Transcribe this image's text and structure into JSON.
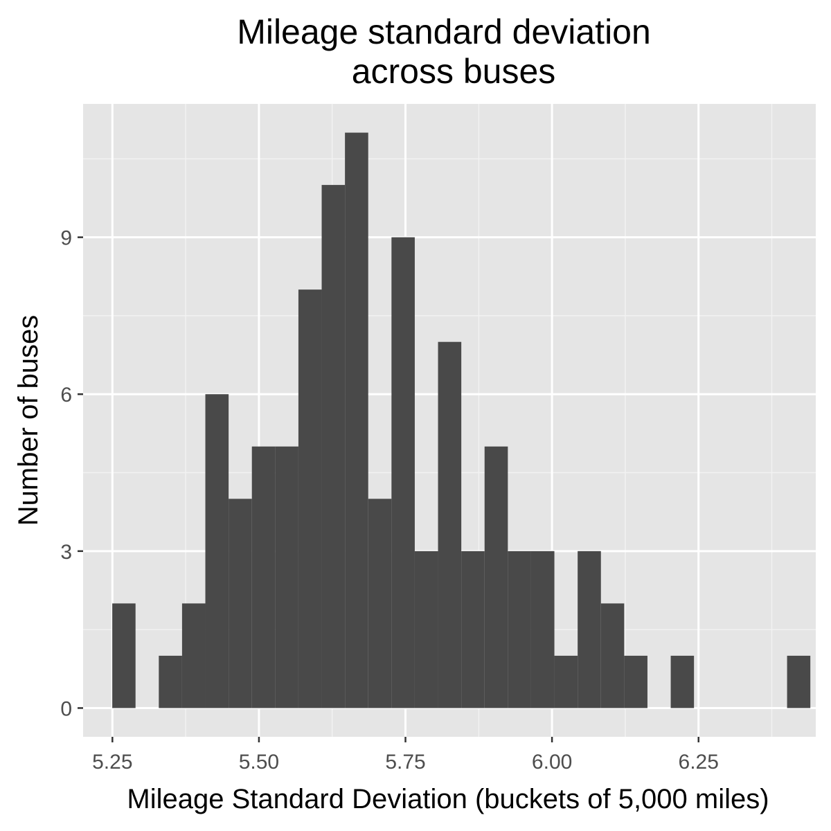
{
  "chart_data": {
    "type": "bar",
    "title_lines": [
      "Mileage standard deviation",
      "across buses"
    ],
    "xlabel": "Mileage Standard Deviation (buckets of 5,000 miles)",
    "ylabel": "Number of buses",
    "xlim": [
      5.2,
      6.45
    ],
    "ylim": [
      -0.55,
      11.55
    ],
    "x_ticks": [
      5.25,
      5.5,
      5.75,
      6.0,
      6.25
    ],
    "x_tick_labels": [
      "5.25",
      "5.50",
      "5.75",
      "6.00",
      "6.25"
    ],
    "x_minor_ticks": [
      5.375,
      5.625,
      5.875,
      6.125,
      6.375
    ],
    "y_ticks": [
      0,
      3,
      6,
      9
    ],
    "y_tick_labels": [
      "0",
      "3",
      "6",
      "9"
    ],
    "y_minor_ticks": [
      1.5,
      4.5,
      7.5,
      10.5
    ],
    "bin_width": 0.0397,
    "bins": [
      {
        "x": 5.2696,
        "count": 2
      },
      {
        "x": 5.3093,
        "count": 0
      },
      {
        "x": 5.349,
        "count": 1
      },
      {
        "x": 5.3887,
        "count": 2
      },
      {
        "x": 5.4284,
        "count": 6
      },
      {
        "x": 5.4681,
        "count": 4
      },
      {
        "x": 5.5078,
        "count": 5
      },
      {
        "x": 5.5475,
        "count": 5
      },
      {
        "x": 5.5872,
        "count": 8
      },
      {
        "x": 5.6269,
        "count": 10
      },
      {
        "x": 5.6666,
        "count": 11
      },
      {
        "x": 5.7063,
        "count": 4
      },
      {
        "x": 5.746,
        "count": 9
      },
      {
        "x": 5.7857,
        "count": 3
      },
      {
        "x": 5.8254,
        "count": 7
      },
      {
        "x": 5.8651,
        "count": 3
      },
      {
        "x": 5.9048,
        "count": 5
      },
      {
        "x": 5.9445,
        "count": 3
      },
      {
        "x": 5.9842,
        "count": 3
      },
      {
        "x": 6.0239,
        "count": 1
      },
      {
        "x": 6.0636,
        "count": 3
      },
      {
        "x": 6.1033,
        "count": 2
      },
      {
        "x": 6.143,
        "count": 1
      },
      {
        "x": 6.1827,
        "count": 0
      },
      {
        "x": 6.2224,
        "count": 1
      },
      {
        "x": 6.2621,
        "count": 0
      },
      {
        "x": 6.3018,
        "count": 0
      },
      {
        "x": 6.3415,
        "count": 0
      },
      {
        "x": 6.3812,
        "count": 0
      },
      {
        "x": 6.4209,
        "count": 1
      }
    ],
    "grid": true,
    "legend": "none",
    "colors": {
      "panel_background": "#e5e5e5",
      "grid_major": "#ffffff",
      "grid_minor": "#f2f2f2",
      "bar_fill": "#494949",
      "tick_color": "#333333"
    }
  }
}
